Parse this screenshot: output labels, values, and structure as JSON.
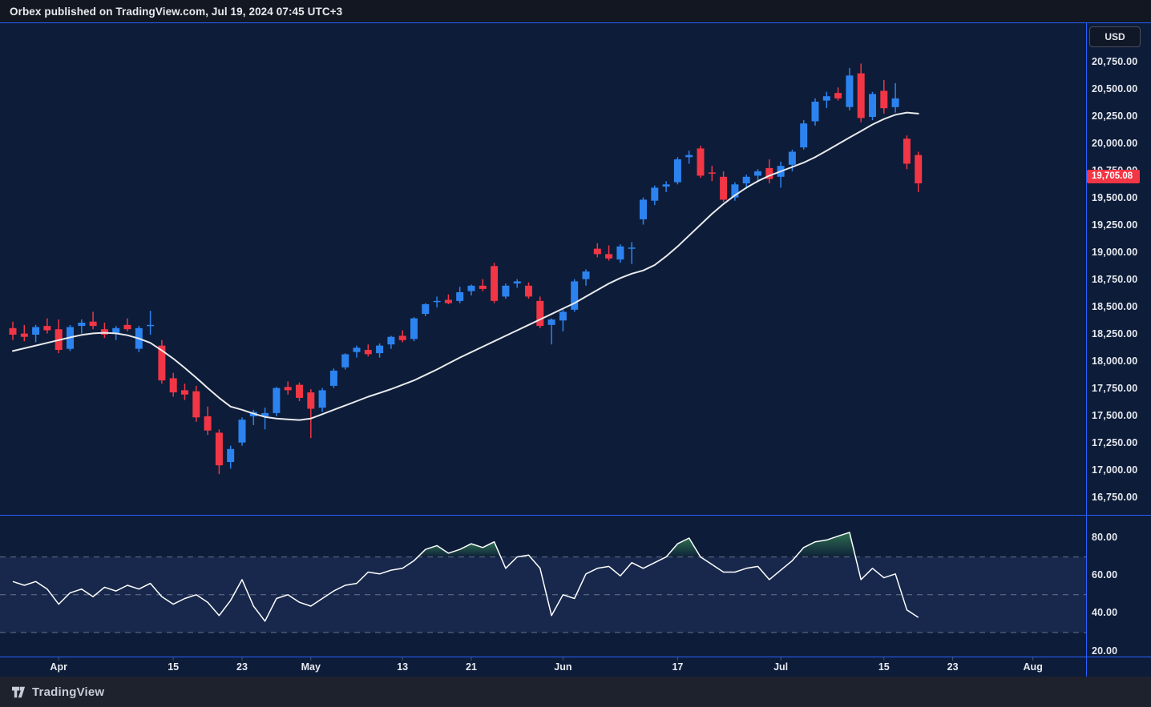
{
  "header": {
    "publish_text": "Orbex published on TradingView.com, Jul 19, 2024 07:45 UTC+3"
  },
  "price_axis": {
    "currency_label": "USD",
    "ticks": [
      {
        "label": "20,750.00",
        "value": 20750
      },
      {
        "label": "20,500.00",
        "value": 20500
      },
      {
        "label": "20,250.00",
        "value": 20250
      },
      {
        "label": "20,000.00",
        "value": 20000
      },
      {
        "label": "19,750.00",
        "value": 19750
      },
      {
        "label": "19,500.00",
        "value": 19500
      },
      {
        "label": "19,250.00",
        "value": 19250
      },
      {
        "label": "19,000.00",
        "value": 19000
      },
      {
        "label": "18,750.00",
        "value": 18750
      },
      {
        "label": "18,500.00",
        "value": 18500
      },
      {
        "label": "18,250.00",
        "value": 18250
      },
      {
        "label": "18,000.00",
        "value": 18000
      },
      {
        "label": "17,750.00",
        "value": 17750
      },
      {
        "label": "17,500.00",
        "value": 17500
      },
      {
        "label": "17,250.00",
        "value": 17250
      },
      {
        "label": "17,000.00",
        "value": 17000
      },
      {
        "label": "16,750.00",
        "value": 16750
      }
    ],
    "last_price": {
      "label": "19,705.08",
      "value": 19705.08
    }
  },
  "rsi_axis": {
    "ticks": [
      {
        "label": "80.00",
        "value": 80
      },
      {
        "label": "60.00",
        "value": 60
      },
      {
        "label": "40.00",
        "value": 40
      },
      {
        "label": "20.00",
        "value": 20
      }
    ]
  },
  "time_axis": {
    "ticks": [
      {
        "label": "Apr",
        "i": 4
      },
      {
        "label": "15",
        "i": 14
      },
      {
        "label": "23",
        "i": 20
      },
      {
        "label": "May",
        "i": 26
      },
      {
        "label": "13",
        "i": 34
      },
      {
        "label": "21",
        "i": 40
      },
      {
        "label": "Jun",
        "i": 48
      },
      {
        "label": "17",
        "i": 58
      },
      {
        "label": "Jul",
        "i": 67
      },
      {
        "label": "15",
        "i": 76
      },
      {
        "label": "23",
        "i": 82
      },
      {
        "label": "Aug",
        "i": 89
      }
    ]
  },
  "footer": {
    "brand": "TradingView"
  },
  "colors": {
    "header_bg": "#131722",
    "footer_bg": "#1e222d",
    "chart_bg": "#0d1c38",
    "frame": "#2962ff",
    "up": "#2c83f0",
    "down": "#f23645",
    "ma_line": "#e8eaed",
    "rsi_line": "#ffffff",
    "rsi_band": "rgba(128,148,255,0.10)",
    "rsi_level_line": "rgba(183,189,205,0.5)",
    "rsi_fill_green": "rgba(47,116,82,0.95)",
    "tag_bg": "#f23645",
    "axis_text": "#e6e9f0"
  },
  "chart_data": {
    "type": "candlestick",
    "panes": [
      "price with white moving-average line",
      "RSI lower pane with 70/50/30 levels and green overbought fill"
    ],
    "price_axis_range": [
      16600,
      20900
    ],
    "rsi_levels": [
      70,
      50,
      30
    ],
    "candles_format": [
      "date",
      "open",
      "high",
      "low",
      "close"
    ],
    "candles": [
      [
        "Mar 25",
        18310,
        18370,
        18200,
        18250
      ],
      [
        "Mar 26",
        18260,
        18340,
        18190,
        18230
      ],
      [
        "Mar 27",
        18250,
        18340,
        18180,
        18320
      ],
      [
        "Mar 28",
        18330,
        18400,
        18260,
        18290
      ],
      [
        "Apr 1",
        18300,
        18390,
        18080,
        18110
      ],
      [
        "Apr 2",
        18120,
        18340,
        18100,
        18320
      ],
      [
        "Apr 3",
        18330,
        18390,
        18260,
        18360
      ],
      [
        "Apr 4",
        18370,
        18460,
        18300,
        18330
      ],
      [
        "Apr 5",
        18300,
        18360,
        18220,
        18250
      ],
      [
        "Apr 8",
        18260,
        18330,
        18200,
        18310
      ],
      [
        "Apr 9",
        18340,
        18400,
        18280,
        18300
      ],
      [
        "Apr 10",
        18120,
        18330,
        18090,
        18310
      ],
      [
        "Apr 11",
        18330,
        18470,
        18250,
        18340
      ],
      [
        "Apr 12",
        18150,
        18200,
        17800,
        17830
      ],
      [
        "Apr 15",
        17850,
        17900,
        17680,
        17720
      ],
      [
        "Apr 16",
        17740,
        17800,
        17650,
        17700
      ],
      [
        "Apr 17",
        17730,
        17780,
        17450,
        17490
      ],
      [
        "Apr 18",
        17500,
        17590,
        17330,
        17370
      ],
      [
        "Apr 19",
        17350,
        17380,
        16970,
        17050
      ],
      [
        "Apr 22",
        17080,
        17230,
        17020,
        17200
      ],
      [
        "Apr 23",
        17260,
        17490,
        17230,
        17470
      ],
      [
        "Apr 24",
        17500,
        17560,
        17420,
        17540
      ],
      [
        "Apr 25",
        17500,
        17580,
        17380,
        17530
      ],
      [
        "Apr 26",
        17530,
        17770,
        17500,
        17760
      ],
      [
        "Apr 29",
        17770,
        17820,
        17700,
        17740
      ],
      [
        "Apr 30",
        17790,
        17810,
        17640,
        17670
      ],
      [
        "May 1",
        17720,
        17750,
        17300,
        17570
      ],
      [
        "May 2",
        17580,
        17760,
        17540,
        17740
      ],
      [
        "May 3",
        17780,
        17940,
        17760,
        17920
      ],
      [
        "May 6",
        17950,
        18080,
        17930,
        18070
      ],
      [
        "May 7",
        18090,
        18150,
        18040,
        18130
      ],
      [
        "May 8",
        18110,
        18160,
        18050,
        18070
      ],
      [
        "May 9",
        18080,
        18170,
        18040,
        18150
      ],
      [
        "May 10",
        18160,
        18240,
        18120,
        18230
      ],
      [
        "May 13",
        18240,
        18290,
        18180,
        18200
      ],
      [
        "May 14",
        18210,
        18410,
        18190,
        18400
      ],
      [
        "May 15",
        18440,
        18540,
        18420,
        18530
      ],
      [
        "May 16",
        18550,
        18600,
        18500,
        18560
      ],
      [
        "May 17",
        18570,
        18620,
        18530,
        18540
      ],
      [
        "May 20",
        18560,
        18690,
        18540,
        18640
      ],
      [
        "May 21",
        18650,
        18710,
        18610,
        18700
      ],
      [
        "May 22",
        18700,
        18760,
        18650,
        18670
      ],
      [
        "May 23",
        18880,
        18910,
        18540,
        18560
      ],
      [
        "May 24",
        18600,
        18720,
        18580,
        18700
      ],
      [
        "May 28",
        18720,
        18760,
        18680,
        18740
      ],
      [
        "May 29",
        18700,
        18730,
        18580,
        18600
      ],
      [
        "May 30",
        18560,
        18600,
        18310,
        18330
      ],
      [
        "May 31",
        18340,
        18400,
        18160,
        18390
      ],
      [
        "Jun 3",
        18380,
        18490,
        18280,
        18460
      ],
      [
        "Jun 4",
        18480,
        18760,
        18460,
        18740
      ],
      [
        "Jun 5",
        18760,
        18850,
        18700,
        18830
      ],
      [
        "Jun 6",
        19040,
        19090,
        18960,
        18990
      ],
      [
        "Jun 7",
        18990,
        19070,
        18930,
        18950
      ],
      [
        "Jun 10",
        18940,
        19080,
        18910,
        19060
      ],
      [
        "Jun 11",
        19040,
        19100,
        18900,
        19050
      ],
      [
        "Jun 12",
        19310,
        19510,
        19260,
        19490
      ],
      [
        "Jun 13",
        19480,
        19620,
        19440,
        19600
      ],
      [
        "Jun 14",
        19610,
        19660,
        19560,
        19630
      ],
      [
        "Jun 17",
        19650,
        19880,
        19630,
        19860
      ],
      [
        "Jun 18",
        19880,
        19940,
        19820,
        19900
      ],
      [
        "Jun 20",
        19960,
        19985,
        19690,
        19710
      ],
      [
        "Jun 21",
        19740,
        19800,
        19660,
        19730
      ],
      [
        "Jun 24",
        19700,
        19750,
        19470,
        19490
      ],
      [
        "Jun 25",
        19510,
        19650,
        19480,
        19630
      ],
      [
        "Jun 26",
        19640,
        19720,
        19590,
        19700
      ],
      [
        "Jun 27",
        19710,
        19770,
        19650,
        19750
      ],
      [
        "Jun 28",
        19780,
        19860,
        19640,
        19680
      ],
      [
        "Jul 1",
        19700,
        19840,
        19600,
        19800
      ],
      [
        "Jul 2",
        19810,
        19950,
        19750,
        19930
      ],
      [
        "Jul 3",
        19970,
        20220,
        19950,
        20190
      ],
      [
        "Jul 5",
        20210,
        20420,
        20170,
        20390
      ],
      [
        "Jul 8",
        20400,
        20480,
        20330,
        20440
      ],
      [
        "Jul 9",
        20470,
        20520,
        20400,
        20420
      ],
      [
        "Jul 10",
        20340,
        20700,
        20310,
        20630
      ],
      [
        "Jul 11",
        20650,
        20740,
        20200,
        20240
      ],
      [
        "Jul 12",
        20250,
        20480,
        20220,
        20460
      ],
      [
        "Jul 15",
        20490,
        20590,
        20280,
        20330
      ],
      [
        "Jul 16",
        20340,
        20560,
        20290,
        20420
      ],
      [
        "Jul 17",
        20050,
        20080,
        19770,
        19820
      ],
      [
        "Jul 18",
        19900,
        19930,
        19560,
        19640
      ]
    ],
    "ma": [
      18100,
      18125,
      18150,
      18175,
      18200,
      18225,
      18248,
      18262,
      18268,
      18262,
      18245,
      18215,
      18175,
      18105,
      18030,
      17945,
      17855,
      17760,
      17670,
      17590,
      17560,
      17525,
      17495,
      17480,
      17472,
      17466,
      17480,
      17520,
      17560,
      17600,
      17640,
      17680,
      17715,
      17750,
      17790,
      17830,
      17880,
      17930,
      17985,
      18040,
      18090,
      18140,
      18190,
      18240,
      18290,
      18340,
      18390,
      18440,
      18490,
      18540,
      18600,
      18660,
      18720,
      18770,
      18810,
      18840,
      18890,
      18970,
      19060,
      19160,
      19260,
      19360,
      19450,
      19530,
      19600,
      19660,
      19710,
      19750,
      19790,
      19830,
      19880,
      19940,
      20000,
      20060,
      20120,
      20180,
      20230,
      20270,
      20290,
      20280
    ],
    "rsi": {
      "overbought": 70,
      "midline": 50,
      "oversold": 30,
      "values": [
        57,
        55,
        57,
        53,
        45,
        51,
        53,
        49,
        54,
        52,
        55,
        53,
        56,
        49,
        45,
        48,
        50,
        46,
        39,
        47,
        58,
        44,
        36,
        48,
        50,
        46,
        44,
        48,
        52,
        55,
        56,
        62,
        61,
        63,
        64,
        68,
        74,
        76,
        72,
        74,
        77,
        75,
        78,
        64,
        70,
        71,
        64,
        39,
        50,
        48,
        61,
        64,
        65,
        60,
        67,
        64,
        67,
        70,
        77,
        80,
        70,
        66,
        62,
        62,
        64,
        65,
        58,
        63,
        68,
        75,
        78,
        79,
        81,
        83,
        58,
        64,
        59,
        61,
        42,
        38
      ]
    }
  }
}
